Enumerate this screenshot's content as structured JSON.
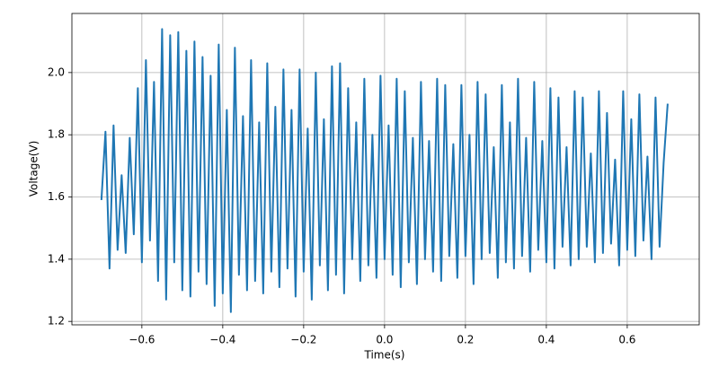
{
  "chart_data": {
    "type": "line",
    "xlabel": "Time(s)",
    "ylabel": "Voltage(V)",
    "color": "#1f77b4",
    "grid": true,
    "xlim": [
      -0.773,
      0.778
    ],
    "ylim": [
      1.189,
      2.19
    ],
    "xticks": [
      {
        "value": -0.6,
        "label": "−0.6"
      },
      {
        "value": -0.4,
        "label": "−0.4"
      },
      {
        "value": -0.2,
        "label": "−0.2"
      },
      {
        "value": 0,
        "label": "0.0"
      },
      {
        "value": 0.2,
        "label": "0.2"
      },
      {
        "value": 0.4,
        "label": "0.4"
      },
      {
        "value": 0.6,
        "label": "0.6"
      }
    ],
    "yticks": [
      {
        "value": 1.2,
        "label": "1.2"
      },
      {
        "value": 1.4,
        "label": "1.4"
      },
      {
        "value": 1.6,
        "label": "1.6"
      },
      {
        "value": 1.8,
        "label": "1.8"
      },
      {
        "value": 2.0,
        "label": "2.0"
      }
    ],
    "x": [
      -0.7,
      -0.69,
      -0.68,
      -0.67,
      -0.66,
      -0.65,
      -0.64,
      -0.63,
      -0.62,
      -0.61,
      -0.6,
      -0.59,
      -0.58,
      -0.57,
      -0.56,
      -0.55,
      -0.54,
      -0.53,
      -0.52,
      -0.51,
      -0.5,
      -0.49,
      -0.48,
      -0.47,
      -0.46,
      -0.45,
      -0.44,
      -0.43,
      -0.42,
      -0.41,
      -0.4,
      -0.39,
      -0.38,
      -0.37,
      -0.36,
      -0.35,
      -0.34,
      -0.33,
      -0.32,
      -0.31,
      -0.3,
      -0.29,
      -0.28,
      -0.27,
      -0.26,
      -0.25,
      -0.24,
      -0.23,
      -0.22,
      -0.21,
      -0.2,
      -0.19,
      -0.18,
      -0.17,
      -0.16,
      -0.15,
      -0.14,
      -0.13,
      -0.12,
      -0.11,
      -0.1,
      -0.09,
      -0.08,
      -0.07,
      -0.06,
      -0.05,
      -0.04,
      -0.03,
      -0.02,
      -0.01,
      0.0,
      0.01,
      0.02,
      0.03,
      0.04,
      0.05,
      0.06,
      0.07,
      0.08,
      0.09,
      0.1,
      0.11,
      0.12,
      0.13,
      0.14,
      0.15,
      0.16,
      0.17,
      0.18,
      0.19,
      0.2,
      0.21,
      0.22,
      0.23,
      0.24,
      0.25,
      0.26,
      0.27,
      0.28,
      0.29,
      0.3,
      0.31,
      0.32,
      0.33,
      0.34,
      0.35,
      0.36,
      0.37,
      0.38,
      0.39,
      0.4,
      0.41,
      0.42,
      0.43,
      0.44,
      0.45,
      0.46,
      0.47,
      0.48,
      0.49,
      0.5,
      0.51,
      0.52,
      0.53,
      0.54,
      0.55,
      0.56,
      0.57,
      0.58,
      0.59,
      0.6,
      0.61,
      0.62,
      0.63,
      0.64,
      0.65,
      0.66,
      0.67,
      0.68,
      0.69,
      0.7
    ],
    "values": [
      1.59,
      1.81,
      1.37,
      1.83,
      1.43,
      1.67,
      1.42,
      1.79,
      1.48,
      1.95,
      1.39,
      2.04,
      1.46,
      1.97,
      1.33,
      2.14,
      1.27,
      2.12,
      1.39,
      2.13,
      1.3,
      2.07,
      1.28,
      2.1,
      1.36,
      2.05,
      1.32,
      1.99,
      1.25,
      2.09,
      1.29,
      1.88,
      1.23,
      2.08,
      1.35,
      1.86,
      1.3,
      2.04,
      1.33,
      1.84,
      1.29,
      2.03,
      1.36,
      1.89,
      1.31,
      2.01,
      1.37,
      1.88,
      1.28,
      2.01,
      1.36,
      1.82,
      1.27,
      2.0,
      1.38,
      1.85,
      1.3,
      2.02,
      1.35,
      2.03,
      1.29,
      1.95,
      1.4,
      1.84,
      1.33,
      1.98,
      1.38,
      1.8,
      1.34,
      1.99,
      1.4,
      1.83,
      1.35,
      1.98,
      1.31,
      1.94,
      1.39,
      1.79,
      1.32,
      1.97,
      1.4,
      1.78,
      1.36,
      1.98,
      1.33,
      1.96,
      1.41,
      1.77,
      1.34,
      1.96,
      1.41,
      1.8,
      1.32,
      1.97,
      1.4,
      1.93,
      1.42,
      1.76,
      1.34,
      1.96,
      1.39,
      1.84,
      1.37,
      1.98,
      1.41,
      1.79,
      1.36,
      1.97,
      1.43,
      1.78,
      1.39,
      1.95,
      1.37,
      1.92,
      1.44,
      1.76,
      1.38,
      1.94,
      1.4,
      1.92,
      1.44,
      1.74,
      1.39,
      1.94,
      1.42,
      1.87,
      1.45,
      1.72,
      1.38,
      1.94,
      1.43,
      1.85,
      1.41,
      1.93,
      1.46,
      1.73,
      1.4,
      1.92,
      1.44,
      1.71,
      1.9
    ]
  }
}
